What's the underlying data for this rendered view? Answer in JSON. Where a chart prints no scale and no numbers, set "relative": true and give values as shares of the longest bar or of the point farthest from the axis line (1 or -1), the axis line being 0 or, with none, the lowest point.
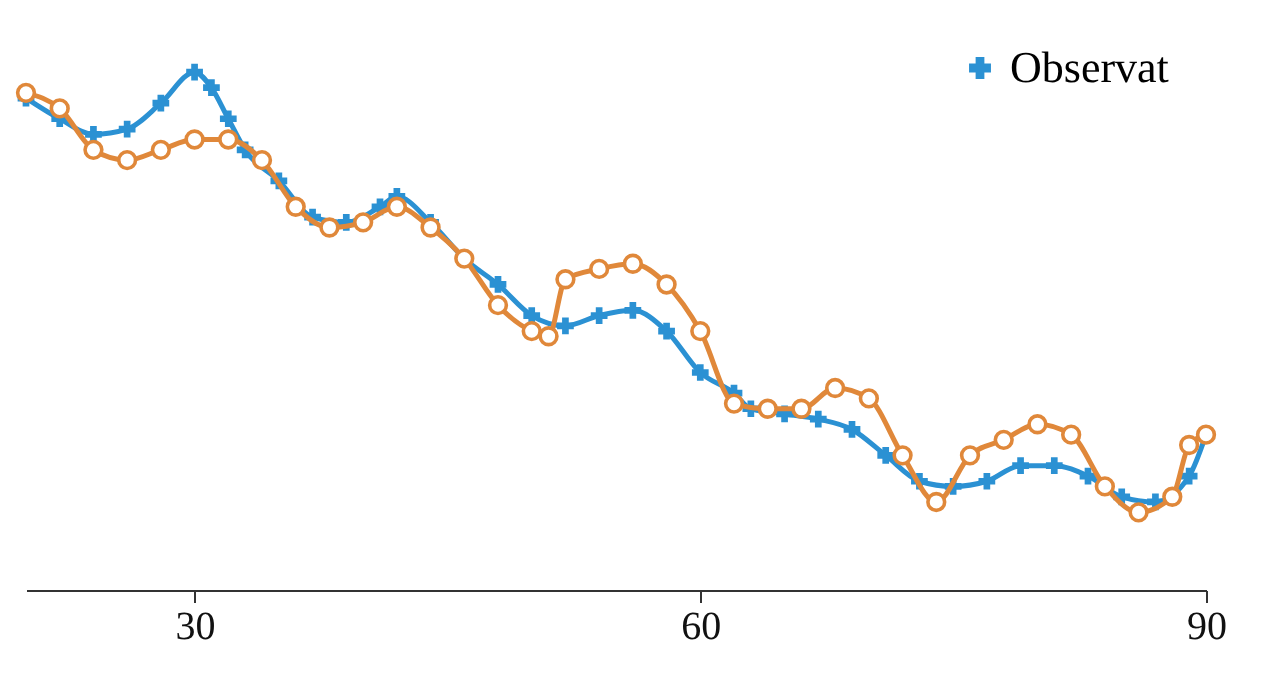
{
  "chart_data": {
    "type": "line",
    "relative": true,
    "legend": "top right",
    "xlim": [
      20,
      90
    ],
    "xticks": [
      30,
      60,
      90
    ],
    "line_style": "solid",
    "series": [
      {
        "name": "Observat",
        "color": "#2b91d3",
        "marker": "cross",
        "x": [
          20,
          22,
          24,
          26,
          28,
          30,
          31,
          32,
          33,
          35,
          37,
          39,
          41,
          42,
          44,
          46,
          48,
          50,
          52,
          54,
          56,
          58,
          60,
          62,
          63,
          65,
          67,
          69,
          71,
          73,
          75,
          77,
          79,
          81,
          83,
          85,
          87,
          89,
          90
        ],
        "values": [
          0.95,
          0.91,
          0.88,
          0.89,
          0.94,
          1,
          0.97,
          0.91,
          0.85,
          0.79,
          0.72,
          0.71,
          0.74,
          0.76,
          0.71,
          0.64,
          0.59,
          0.53,
          0.51,
          0.53,
          0.54,
          0.5,
          0.42,
          0.38,
          0.35,
          0.34,
          0.33,
          0.31,
          0.26,
          0.21,
          0.2,
          0.21,
          0.24,
          0.24,
          0.22,
          0.18,
          0.17,
          0.22,
          0.3
        ]
      },
      {
        "color": "#e0883a",
        "marker": "circle",
        "x": [
          20,
          22,
          24,
          26,
          28,
          30,
          32,
          34,
          36,
          38,
          40,
          42,
          44,
          46,
          48,
          50,
          51,
          52,
          54,
          56,
          58,
          60,
          62,
          64,
          66,
          68,
          70,
          72,
          74,
          76,
          78,
          80,
          82,
          84,
          86,
          88,
          89,
          90
        ],
        "values": [
          0.96,
          0.93,
          0.85,
          0.83,
          0.85,
          0.87,
          0.87,
          0.83,
          0.74,
          0.7,
          0.71,
          0.74,
          0.7,
          0.64,
          0.55,
          0.5,
          0.49,
          0.6,
          0.62,
          0.63,
          0.59,
          0.5,
          0.36,
          0.35,
          0.35,
          0.39,
          0.37,
          0.26,
          0.17,
          0.26,
          0.29,
          0.32,
          0.3,
          0.2,
          0.15,
          0.18,
          0.28,
          0.3
        ]
      }
    ]
  }
}
